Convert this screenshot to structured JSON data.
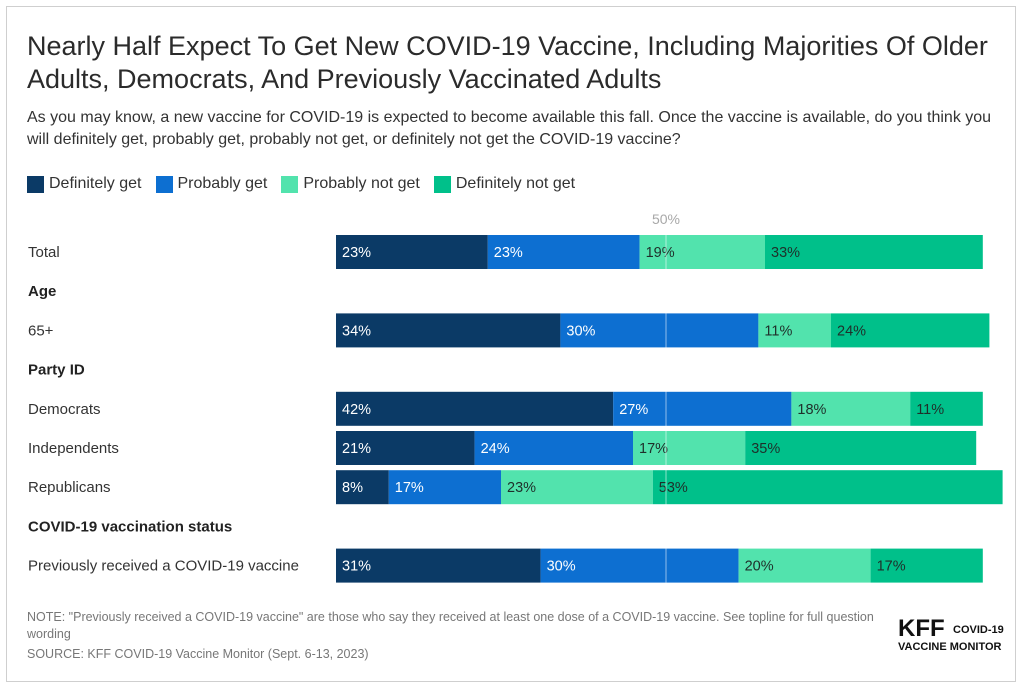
{
  "title": "Nearly Half Expect To Get New COVID-19 Vaccine, Including Majorities Of Older Adults, Democrats, And Previously Vaccinated Adults",
  "subtitle": "As you may know, a new vaccine for COVID-19 is expected to become available this fall. Once the vaccine is available, do you think you will definitely get, probably get, probably not get, or definitely not get the COVID-19 vaccine?",
  "legend": [
    {
      "label": "Definitely get",
      "color": "#0b3a66"
    },
    {
      "label": "Probably get",
      "color": "#0d6fd1"
    },
    {
      "label": "Probably not get",
      "color": "#52e3ad"
    },
    {
      "label": "Definitely not get",
      "color": "#00c08a"
    }
  ],
  "note": "NOTE: \"Previously received a COVID-19 vaccine\" are those who say they received at least one dose of a COVID-19 vaccine. See topline for full question wording",
  "source": "SOURCE: KFF COVID-19 Vaccine Monitor (Sept. 6-13, 2023)",
  "logo": {
    "brand": "KFF",
    "line1": "COVID-19",
    "line2": "VACCINE MONITOR"
  },
  "chart_data": {
    "type": "bar",
    "orientation": "horizontal",
    "stacked": true,
    "unit": "%",
    "reference_line": {
      "value": 50,
      "label": "50%"
    },
    "series": [
      {
        "name": "Definitely get",
        "color": "#0b3a66",
        "label_color": "#ffffff"
      },
      {
        "name": "Probably get",
        "color": "#0d6fd1",
        "label_color": "#ffffff"
      },
      {
        "name": "Probably not get",
        "color": "#52e3ad",
        "label_color": "#1f2f2a"
      },
      {
        "name": "Definitely not get",
        "color": "#00c08a",
        "label_color": "#1f2f2a"
      }
    ],
    "rows": [
      {
        "kind": "bar",
        "label": "Total",
        "values": [
          23,
          23,
          19,
          33
        ]
      },
      {
        "kind": "section",
        "label": "Age"
      },
      {
        "kind": "bar",
        "label": "65+",
        "values": [
          34,
          30,
          11,
          24
        ]
      },
      {
        "kind": "section",
        "label": "Party ID"
      },
      {
        "kind": "bar",
        "label": "Democrats",
        "values": [
          42,
          27,
          18,
          11
        ]
      },
      {
        "kind": "bar",
        "label": "Independents",
        "values": [
          21,
          24,
          17,
          35
        ]
      },
      {
        "kind": "bar",
        "label": "Republicans",
        "values": [
          8,
          17,
          23,
          53
        ]
      },
      {
        "kind": "section",
        "label": "COVID-19 vaccination status"
      },
      {
        "kind": "bar",
        "label": "Previously received a COVID-19 vaccine",
        "values": [
          31,
          30,
          20,
          17
        ]
      }
    ]
  }
}
